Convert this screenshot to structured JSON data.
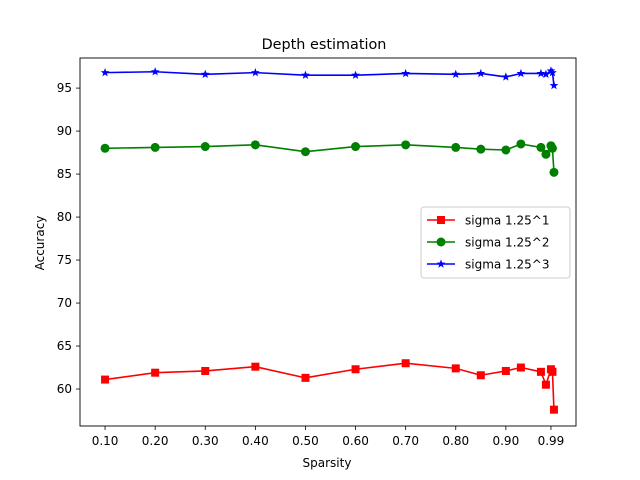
{
  "chart_data": {
    "type": "line",
    "title": "Depth estimation",
    "xlabel": "Sparsity",
    "ylabel": "Accuracy",
    "x_tick_labels": [
      "0.10",
      "0.20",
      "0.30",
      "0.40",
      "0.50",
      "0.60",
      "0.70",
      "0.80",
      "0.90",
      "0.99"
    ],
    "x_tick_values": [
      0.1,
      0.2,
      0.3,
      0.4,
      0.5,
      0.6,
      0.7,
      0.8,
      0.9,
      0.99
    ],
    "xlim": [
      0.05,
      1.04
    ],
    "ylim": [
      55.7,
      98.5
    ],
    "y_ticks": [
      60,
      65,
      70,
      75,
      80,
      85,
      90,
      95
    ],
    "y_tick_labels": [
      "60",
      "65",
      "70",
      "75",
      "80",
      "85",
      "90",
      "95"
    ],
    "grid": false,
    "legend_position": "center-right",
    "x": [
      0.1,
      0.2,
      0.3,
      0.4,
      0.5,
      0.6,
      0.7,
      0.8,
      0.85,
      0.9,
      0.93,
      0.97,
      0.98,
      0.99,
      0.993,
      0.996
    ],
    "series": [
      {
        "name": "sigma 1.25^1",
        "color": "#ff0000",
        "marker": "square",
        "values": [
          61.1,
          61.9,
          62.1,
          62.6,
          61.3,
          62.3,
          63.0,
          62.4,
          61.6,
          62.1,
          62.5,
          62.0,
          60.5,
          62.3,
          62.0,
          57.6
        ]
      },
      {
        "name": "sigma 1.25^2",
        "color": "#008000",
        "marker": "circle",
        "values": [
          88.0,
          88.1,
          88.2,
          88.4,
          87.6,
          88.2,
          88.4,
          88.1,
          87.9,
          87.8,
          88.5,
          88.1,
          87.3,
          88.3,
          88.0,
          85.2
        ]
      },
      {
        "name": "sigma 1.25^3",
        "color": "#0000ff",
        "marker": "star",
        "values": [
          96.8,
          96.9,
          96.6,
          96.8,
          96.5,
          96.5,
          96.7,
          96.6,
          96.7,
          96.3,
          96.7,
          96.7,
          96.6,
          97.0,
          96.8,
          95.3
        ]
      }
    ]
  }
}
